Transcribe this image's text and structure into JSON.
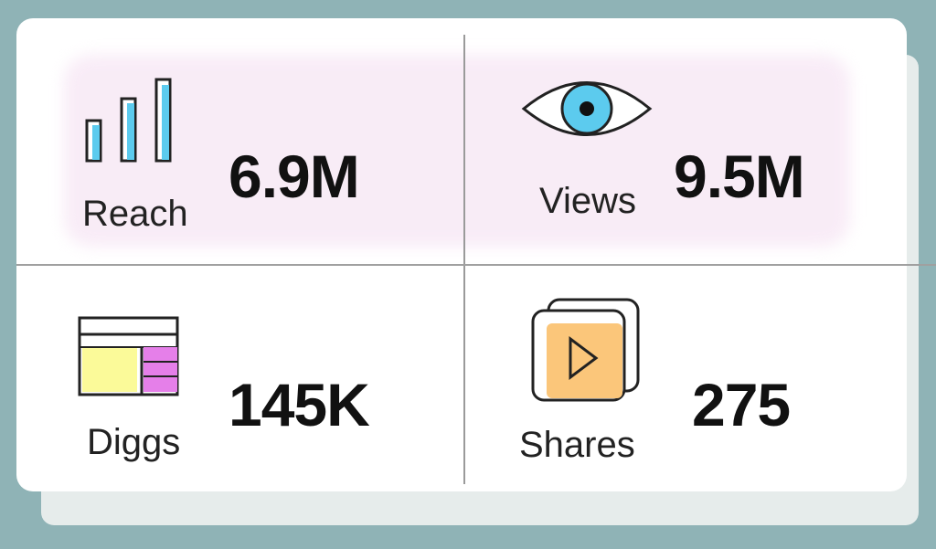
{
  "metrics": [
    {
      "label": "Reach",
      "value": "6.9M",
      "icon": "bar-chart-icon"
    },
    {
      "label": "Views",
      "value": "9.5M",
      "icon": "eye-icon"
    },
    {
      "label": "Diggs",
      "value": "145K",
      "icon": "layout-icon"
    },
    {
      "label": "Shares",
      "value": "275",
      "icon": "video-play-icon"
    }
  ],
  "colors": {
    "blue": "#5ccbee",
    "yellow": "#fbfa99",
    "purple": "#e57fe9",
    "orange": "#fbc67a",
    "background": "#8fb3b6"
  }
}
